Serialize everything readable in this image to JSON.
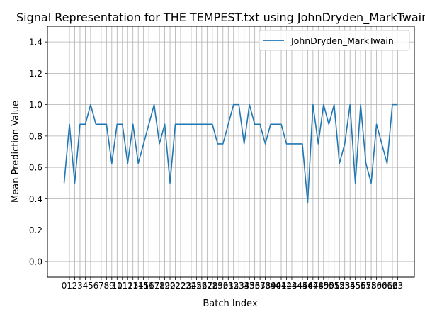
{
  "chart_data": {
    "type": "line",
    "title": "Signal Representation for THE TEMPEST.txt using JohnDryden_MarkTwain",
    "xlabel": "Batch Index",
    "ylabel": "Mean Prediction Value",
    "ylim": [
      -0.1,
      1.5
    ],
    "xlim": [
      -3.15,
      66.15
    ],
    "yticks": [
      0.0,
      0.2,
      0.4,
      0.6,
      0.8,
      1.0,
      1.2,
      1.4
    ],
    "ytick_labels": [
      "0.0",
      "0.2",
      "0.4",
      "0.6",
      "0.8",
      "1.0",
      "1.2",
      "1.4"
    ],
    "xtick_labels": [
      "0",
      "1",
      "2",
      "3",
      "4",
      "5",
      "6",
      "7",
      "8",
      "9",
      "10",
      "11",
      "12",
      "13",
      "14",
      "15",
      "16",
      "17",
      "18",
      "19",
      "20",
      "21",
      "22",
      "23",
      "24",
      "25",
      "26",
      "27",
      "28",
      "29",
      "30",
      "31",
      "32",
      "33",
      "34",
      "35",
      "36",
      "37",
      "38",
      "39",
      "40",
      "41",
      "42",
      "43",
      "44",
      "45",
      "46",
      "47",
      "48",
      "49",
      "50",
      "51",
      "52",
      "53",
      "54",
      "55",
      "56",
      "57",
      "58",
      "59",
      "60",
      "61",
      "62",
      "63"
    ],
    "grid": true,
    "legend_position": "upper right",
    "series": [
      {
        "name": "JohnDryden_MarkTwain",
        "color": "#1f77b4",
        "x": [
          0,
          1,
          2,
          3,
          4,
          5,
          6,
          7,
          8,
          9,
          10,
          11,
          12,
          13,
          14,
          15,
          16,
          17,
          18,
          19,
          20,
          21,
          22,
          23,
          24,
          25,
          26,
          27,
          28,
          29,
          30,
          31,
          32,
          33,
          34,
          35,
          36,
          37,
          38,
          39,
          40,
          41,
          42,
          43,
          44,
          45,
          46,
          47,
          48,
          49,
          50,
          51,
          52,
          53,
          54,
          55,
          56,
          57,
          58,
          59,
          60,
          61,
          62,
          63
        ],
        "values": [
          0.5,
          0.875,
          0.5,
          0.875,
          0.875,
          1.0,
          0.875,
          0.875,
          0.875,
          0.625,
          0.875,
          0.875,
          0.625,
          0.875,
          0.625,
          0.75,
          0.875,
          1.0,
          0.75,
          0.875,
          0.5,
          0.875,
          0.875,
          0.875,
          0.875,
          0.875,
          0.875,
          0.875,
          0.875,
          0.75,
          0.75,
          0.875,
          1.0,
          1.0,
          0.75,
          1.0,
          0.875,
          0.875,
          0.75,
          0.875,
          0.875,
          0.875,
          0.75,
          0.75,
          0.75,
          0.75,
          0.375,
          1.0,
          0.75,
          1.0,
          0.875,
          1.0,
          0.625,
          0.75,
          1.0,
          0.5,
          1.0,
          0.625,
          0.5,
          0.875,
          0.75,
          0.625,
          1.0,
          1.0
        ]
      }
    ]
  }
}
